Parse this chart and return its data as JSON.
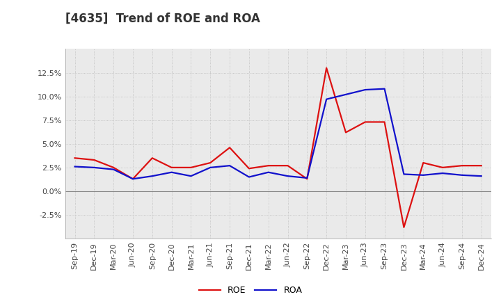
{
  "title": "[4635]  Trend of ROE and ROA",
  "labels": [
    "Sep-19",
    "Dec-19",
    "Mar-20",
    "Jun-20",
    "Sep-20",
    "Dec-20",
    "Mar-21",
    "Jun-21",
    "Sep-21",
    "Dec-21",
    "Mar-22",
    "Jun-22",
    "Sep-22",
    "Dec-22",
    "Mar-23",
    "Jun-23",
    "Sep-23",
    "Dec-23",
    "Mar-24",
    "Jun-24",
    "Sep-24",
    "Dec-24"
  ],
  "roe": [
    3.5,
    3.3,
    2.5,
    1.3,
    3.5,
    2.5,
    2.5,
    3.0,
    4.6,
    2.4,
    2.7,
    2.7,
    1.3,
    13.0,
    6.2,
    7.3,
    7.3,
    -3.8,
    3.0,
    2.5,
    2.7,
    2.7
  ],
  "roa": [
    2.6,
    2.5,
    2.3,
    1.3,
    1.6,
    2.0,
    1.6,
    2.5,
    2.7,
    1.5,
    2.0,
    1.6,
    1.4,
    9.7,
    10.2,
    10.7,
    10.8,
    1.8,
    1.7,
    1.9,
    1.7,
    1.6
  ],
  "roe_color": "#dd1111",
  "roa_color": "#1111cc",
  "bg_color": "#ffffff",
  "plot_bg_color": "#eaeaea",
  "grid_color": "#bbbbbb",
  "zero_line_color": "#888888",
  "ylim": [
    -5.0,
    15.0
  ],
  "yticks": [
    -2.5,
    0.0,
    2.5,
    5.0,
    7.5,
    10.0,
    12.5
  ],
  "line_width": 1.6,
  "title_fontsize": 12,
  "tick_fontsize": 8,
  "legend_fontsize": 9,
  "title_color": "#333333"
}
